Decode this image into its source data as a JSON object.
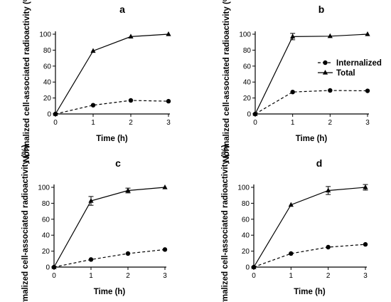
{
  "chart_data": [
    {
      "type": "line",
      "title": "a",
      "xlabel": "Time (h)",
      "ylabel": "Normalized cell-associated radioactivity (%)",
      "x": [
        0,
        1,
        2,
        3
      ],
      "xticks": [
        "0",
        "1",
        "2",
        "3"
      ],
      "yticks": [
        "0",
        "20",
        "40",
        "60",
        "80",
        "100"
      ],
      "xlim": [
        0,
        3
      ],
      "ylim": [
        0,
        100
      ],
      "grid": false,
      "series": [
        {
          "name": "Total",
          "values": [
            0,
            79,
            97,
            100
          ],
          "errors": [
            0,
            0,
            0,
            0
          ],
          "marker": "triangle",
          "style": "solid"
        },
        {
          "name": "Internalized",
          "values": [
            0,
            11,
            17,
            16
          ],
          "errors": [
            0,
            0,
            0,
            0
          ],
          "marker": "circle",
          "style": "dashed"
        }
      ]
    },
    {
      "type": "line",
      "title": "b",
      "xlabel": "Time (h)",
      "ylabel": "Normalized cell-associated radioactivity (%)",
      "x": [
        0,
        1,
        2,
        3
      ],
      "xticks": [
        "0",
        "1",
        "2",
        "3"
      ],
      "yticks": [
        "0",
        "20",
        "40",
        "60",
        "80",
        "100"
      ],
      "xlim": [
        0,
        3
      ],
      "ylim": [
        0,
        100
      ],
      "grid": false,
      "legend": {
        "position": "right",
        "entries": [
          "Internalized",
          "Total"
        ]
      },
      "series": [
        {
          "name": "Total",
          "values": [
            0,
            97,
            97.5,
            100
          ],
          "errors": [
            0,
            4,
            0,
            0
          ],
          "marker": "triangle",
          "style": "solid"
        },
        {
          "name": "Internalized",
          "values": [
            0,
            27.5,
            29.5,
            29
          ],
          "errors": [
            0,
            0,
            0,
            0
          ],
          "marker": "circle",
          "style": "dashed"
        }
      ]
    },
    {
      "type": "line",
      "title": "c",
      "xlabel": "Time (h)",
      "ylabel": "Normalized cell-associated radioactivity (%)",
      "x": [
        0,
        1,
        2,
        3
      ],
      "xticks": [
        "0",
        "1",
        "2",
        "3"
      ],
      "yticks": [
        "0",
        "20",
        "40",
        "60",
        "80",
        "100"
      ],
      "xlim": [
        0,
        3
      ],
      "ylim": [
        0,
        100
      ],
      "grid": false,
      "series": [
        {
          "name": "Total",
          "values": [
            0,
            83,
            96,
            100
          ],
          "errors": [
            0,
            5.5,
            3,
            0
          ],
          "marker": "triangle",
          "style": "solid"
        },
        {
          "name": "Internalized",
          "values": [
            0,
            9.5,
            17,
            22
          ],
          "errors": [
            0,
            0,
            0,
            0
          ],
          "marker": "circle",
          "style": "dashed"
        }
      ]
    },
    {
      "type": "line",
      "title": "d",
      "xlabel": "Time (h)",
      "ylabel": "Normalized cell-associated radioactivity (%)",
      "x": [
        0,
        1,
        2,
        3
      ],
      "xticks": [
        "0",
        "1",
        "2",
        "3"
      ],
      "yticks": [
        "0",
        "20",
        "40",
        "60",
        "80",
        "100"
      ],
      "xlim": [
        0,
        3
      ],
      "ylim": [
        0,
        100
      ],
      "grid": false,
      "series": [
        {
          "name": "Total",
          "values": [
            0,
            78,
            96,
            100
          ],
          "errors": [
            0,
            0,
            5,
            3.5
          ],
          "marker": "triangle",
          "style": "solid"
        },
        {
          "name": "Internalized",
          "values": [
            0,
            17,
            25,
            28.5
          ],
          "errors": [
            0,
            0,
            0,
            0
          ],
          "marker": "circle",
          "style": "dashed"
        }
      ]
    }
  ]
}
